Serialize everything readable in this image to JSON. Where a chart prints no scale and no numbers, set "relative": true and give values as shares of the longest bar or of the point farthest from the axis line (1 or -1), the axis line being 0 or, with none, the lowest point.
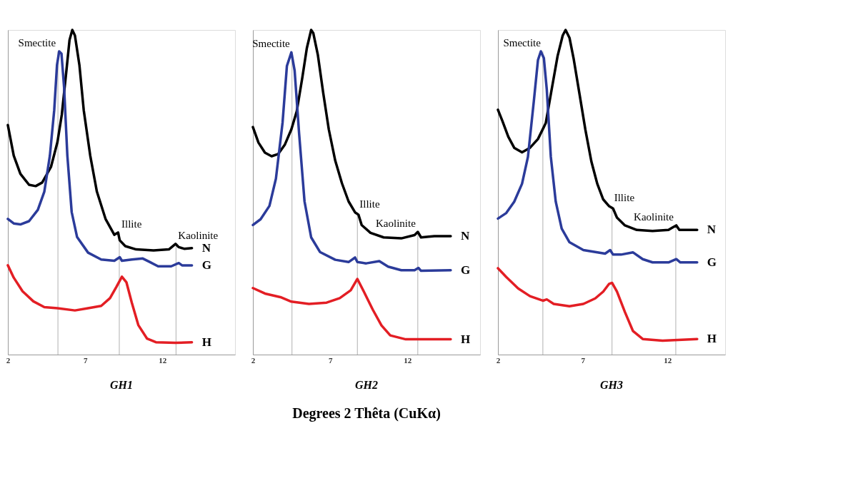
{
  "chart_data": [
    {
      "type": "line",
      "title": "GH1",
      "relative": true,
      "xlim": [
        2,
        16.7
      ],
      "xticks": [
        2,
        7,
        12
      ],
      "series": [
        {
          "name": "N",
          "color": "#000000",
          "x": [
            2.0,
            2.38,
            2.81,
            3.37,
            3.8,
            4.22,
            4.79,
            5.21,
            5.49,
            5.78,
            5.99,
            6.17,
            6.34,
            6.63,
            6.91,
            7.33,
            7.76,
            8.32,
            8.89,
            9.13,
            9.24,
            9.6,
            10.3,
            11.43,
            12.42,
            12.85,
            13.06,
            13.41,
            13.91
          ],
          "values": [
            0.707,
            0.613,
            0.557,
            0.523,
            0.519,
            0.53,
            0.578,
            0.655,
            0.739,
            0.871,
            0.969,
            1.0,
            0.983,
            0.892,
            0.753,
            0.613,
            0.502,
            0.418,
            0.369,
            0.376,
            0.352,
            0.334,
            0.324,
            0.321,
            0.324,
            0.341,
            0.331,
            0.326,
            0.328
          ]
        },
        {
          "name": "G",
          "color": "#2b3b9a",
          "x": [
            2.0,
            2.38,
            2.81,
            3.37,
            3.94,
            4.36,
            4.72,
            5.0,
            5.18,
            5.32,
            5.47,
            5.64,
            5.85,
            6.13,
            6.48,
            7.19,
            8.04,
            8.89,
            9.24,
            9.38,
            10.02,
            10.73,
            11.15,
            11.72,
            12.57,
            13.06,
            13.27,
            13.91
          ],
          "values": [
            0.418,
            0.404,
            0.401,
            0.411,
            0.446,
            0.502,
            0.613,
            0.753,
            0.892,
            0.934,
            0.927,
            0.822,
            0.613,
            0.439,
            0.362,
            0.314,
            0.293,
            0.289,
            0.3,
            0.289,
            0.293,
            0.296,
            0.286,
            0.272,
            0.272,
            0.282,
            0.275,
            0.275
          ]
        },
        {
          "name": "H",
          "color": "#e31e24",
          "x": [
            2.0,
            2.38,
            2.95,
            3.65,
            4.36,
            5.21,
            6.34,
            7.19,
            8.04,
            8.61,
            9.03,
            9.38,
            9.67,
            10.02,
            10.44,
            11.01,
            11.58,
            12.85,
            13.91
          ],
          "values": [
            0.275,
            0.237,
            0.195,
            0.164,
            0.146,
            0.143,
            0.136,
            0.143,
            0.15,
            0.174,
            0.209,
            0.24,
            0.223,
            0.16,
            0.091,
            0.049,
            0.038,
            0.036,
            0.038
          ]
        }
      ],
      "ref_lines": [
        {
          "axis": "x",
          "value": 5.24,
          "color": "#b0b0b0",
          "label": "Smectite"
        },
        {
          "axis": "x",
          "value": 9.21,
          "color": "#b0b0b0",
          "label": "Illite"
        },
        {
          "axis": "x",
          "value": 12.88,
          "color": "#b0b0b0",
          "label": "Kaolinite"
        }
      ]
    },
    {
      "type": "line",
      "title": "GH2",
      "xlabel": "Degrees 2 Thêta (CuKα)",
      "relative": true,
      "xlim": [
        2,
        16.7
      ],
      "xticks": [
        2,
        7,
        12
      ],
      "series": [
        {
          "name": "N",
          "color": "#000000",
          "x": [
            2.0,
            2.36,
            2.78,
            3.21,
            3.64,
            4.06,
            4.49,
            4.84,
            5.2,
            5.49,
            5.77,
            5.91,
            6.2,
            6.55,
            6.91,
            7.33,
            7.76,
            8.19,
            8.61,
            8.83,
            9.04,
            9.61,
            10.46,
            11.6,
            12.46,
            12.67,
            12.88,
            13.74,
            14.8
          ],
          "values": [
            0.701,
            0.653,
            0.622,
            0.611,
            0.618,
            0.646,
            0.694,
            0.75,
            0.854,
            0.944,
            1.0,
            0.99,
            0.924,
            0.806,
            0.694,
            0.597,
            0.528,
            0.472,
            0.438,
            0.431,
            0.399,
            0.375,
            0.361,
            0.358,
            0.368,
            0.378,
            0.361,
            0.365,
            0.365
          ]
        },
        {
          "name": "G",
          "color": "#2b3b9a",
          "x": [
            2.0,
            2.5,
            3.07,
            3.49,
            3.92,
            4.2,
            4.49,
            4.7,
            4.99,
            5.34,
            5.77,
            6.34,
            7.33,
            8.19,
            8.61,
            8.76,
            9.33,
            10.18,
            10.75,
            11.6,
            12.46,
            12.71,
            12.88,
            14.8
          ],
          "values": [
            0.399,
            0.417,
            0.458,
            0.542,
            0.715,
            0.889,
            0.931,
            0.875,
            0.681,
            0.472,
            0.361,
            0.316,
            0.292,
            0.285,
            0.299,
            0.285,
            0.281,
            0.288,
            0.271,
            0.26,
            0.26,
            0.267,
            0.258,
            0.26
          ]
        },
        {
          "name": "H",
          "color": "#e31e24",
          "x": [
            2.0,
            2.78,
            3.78,
            4.49,
            5.63,
            6.77,
            7.62,
            8.33,
            8.76,
            9.18,
            9.75,
            10.32,
            10.89,
            11.89,
            14.8
          ],
          "values": [
            0.205,
            0.188,
            0.177,
            0.163,
            0.156,
            0.16,
            0.174,
            0.198,
            0.233,
            0.194,
            0.139,
            0.09,
            0.059,
            0.047,
            0.047
          ]
        }
      ],
      "ref_lines": [
        {
          "axis": "x",
          "value": 4.53,
          "color": "#b0b0b0",
          "label": "Smectite"
        },
        {
          "axis": "x",
          "value": 8.76,
          "color": "#b0b0b0",
          "label": "Illite"
        },
        {
          "axis": "x",
          "value": 12.67,
          "color": "#b0b0b0",
          "label": "Kaolinite"
        }
      ]
    },
    {
      "type": "line",
      "title": "GH3",
      "relative": true,
      "xlim": [
        2,
        15.4
      ],
      "xticks": [
        2,
        7,
        12
      ],
      "series": [
        {
          "name": "N",
          "color": "#000000",
          "x": [
            2.0,
            2.26,
            2.61,
            2.96,
            3.42,
            3.89,
            4.36,
            4.82,
            5.17,
            5.52,
            5.82,
            5.99,
            6.22,
            6.46,
            6.81,
            7.16,
            7.51,
            7.86,
            8.21,
            8.56,
            8.79,
            9.02,
            9.49,
            10.19,
            11.12,
            12.06,
            12.29,
            12.52,
            12.7,
            13.75
          ],
          "values": [
            0.754,
            0.72,
            0.671,
            0.637,
            0.623,
            0.637,
            0.664,
            0.713,
            0.817,
            0.92,
            0.983,
            1.0,
            0.976,
            0.913,
            0.803,
            0.692,
            0.595,
            0.526,
            0.478,
            0.457,
            0.45,
            0.422,
            0.398,
            0.384,
            0.381,
            0.384,
            0.391,
            0.398,
            0.384,
            0.384
          ]
        },
        {
          "name": "G",
          "color": "#2b3b9a",
          "x": [
            2.0,
            2.49,
            2.96,
            3.42,
            3.77,
            4.12,
            4.36,
            4.53,
            4.71,
            4.88,
            5.12,
            5.41,
            5.76,
            6.22,
            7.04,
            8.32,
            8.62,
            8.79,
            9.26,
            9.96,
            10.54,
            11.12,
            12.06,
            12.52,
            12.76,
            13.75
          ],
          "values": [
            0.419,
            0.436,
            0.471,
            0.526,
            0.609,
            0.782,
            0.907,
            0.934,
            0.913,
            0.817,
            0.609,
            0.471,
            0.388,
            0.346,
            0.322,
            0.311,
            0.322,
            0.308,
            0.308,
            0.315,
            0.294,
            0.284,
            0.284,
            0.294,
            0.284,
            0.284
          ]
        },
        {
          "name": "H",
          "color": "#e31e24",
          "x": [
            2.0,
            2.49,
            3.19,
            3.89,
            4.65,
            4.88,
            5.29,
            6.22,
            7.04,
            7.74,
            8.21,
            8.56,
            8.73,
            9.02,
            9.49,
            9.96,
            10.54,
            11.71,
            13.75
          ],
          "values": [
            0.266,
            0.239,
            0.204,
            0.18,
            0.166,
            0.17,
            0.156,
            0.149,
            0.156,
            0.173,
            0.194,
            0.218,
            0.221,
            0.194,
            0.131,
            0.073,
            0.048,
            0.043,
            0.048
          ]
        }
      ],
      "ref_lines": [
        {
          "axis": "x",
          "value": 4.65,
          "color": "#b0b0b0",
          "label": "Smectite"
        },
        {
          "axis": "x",
          "value": 8.73,
          "color": "#b0b0b0",
          "label": "Illite"
        },
        {
          "axis": "x",
          "value": 12.49,
          "color": "#b0b0b0",
          "label": "Kaolinite"
        }
      ]
    }
  ]
}
